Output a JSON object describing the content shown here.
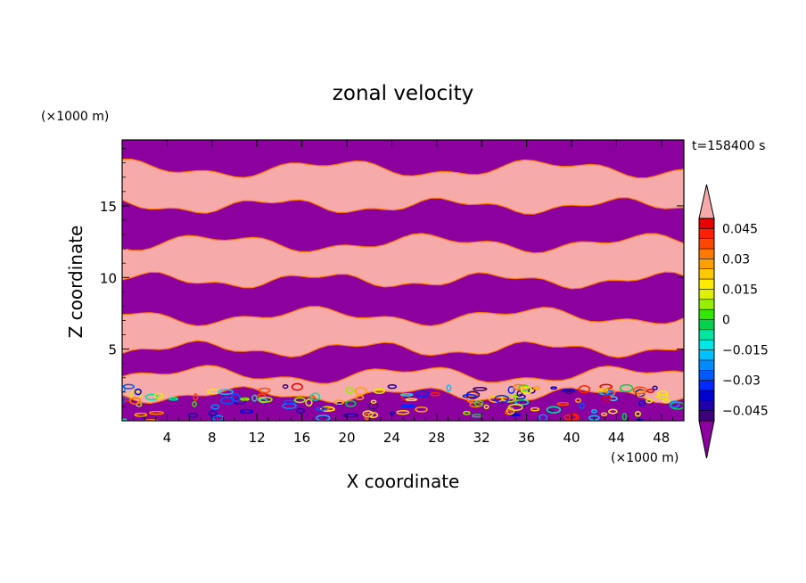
{
  "chart_data": {
    "type": "heatmap",
    "title": "zonal velocity",
    "xlabel": "X coordinate",
    "ylabel": "Z coordinate",
    "x_unit": "(×1000 m)",
    "y_unit": "(×1000 m)",
    "time_label": "t=158400 s",
    "xlim": [
      0,
      50
    ],
    "ylim": [
      0,
      19.6
    ],
    "x_ticks": [
      4,
      8,
      12,
      16,
      20,
      24,
      28,
      32,
      36,
      40,
      44,
      48
    ],
    "y_ticks": [
      5,
      10,
      15
    ],
    "colorbar": {
      "levels": [
        -0.05,
        -0.045,
        -0.04,
        -0.035,
        -0.03,
        -0.025,
        -0.02,
        -0.015,
        -0.01,
        -0.005,
        0,
        0.005,
        0.01,
        0.015,
        0.02,
        0.025,
        0.03,
        0.035,
        0.04,
        0.045,
        0.05
      ],
      "tick_labels": [
        "0.045",
        "0.03",
        "0.015",
        "0",
        "−0.015",
        "−0.03",
        "−0.045"
      ],
      "tick_values": [
        0.045,
        0.03,
        0.015,
        0,
        -0.015,
        -0.03,
        -0.045
      ],
      "colors": [
        "#3d007a",
        "#1f00a8",
        "#0000d0",
        "#0028ff",
        "#0058ff",
        "#008cff",
        "#00c0ff",
        "#00e6e6",
        "#00e6a0",
        "#00d24b",
        "#32e600",
        "#96f000",
        "#dcf000",
        "#ffeb00",
        "#ffc800",
        "#ffa000",
        "#ff7800",
        "#ff4600",
        "#ff1e00",
        "#e60000"
      ],
      "under_color": "#8c00a0",
      "over_color": "#f6aaaa"
    },
    "field_bands": [
      {
        "z": [
          17.6,
          19.6
        ],
        "sign": "negative"
      },
      {
        "z": [
          15.0,
          17.6
        ],
        "sign": "positive"
      },
      {
        "z": [
          12.4,
          15.0
        ],
        "sign": "negative"
      },
      {
        "z": [
          9.8,
          12.4
        ],
        "sign": "positive"
      },
      {
        "z": [
          7.3,
          9.8
        ],
        "sign": "negative"
      },
      {
        "z": [
          5.0,
          7.3
        ],
        "sign": "positive"
      },
      {
        "z": [
          3.2,
          5.0
        ],
        "sign": "negative"
      },
      {
        "z": [
          1.8,
          3.2
        ],
        "sign": "positive"
      },
      {
        "z": [
          0,
          1.8
        ],
        "sign": "negative"
      }
    ]
  }
}
